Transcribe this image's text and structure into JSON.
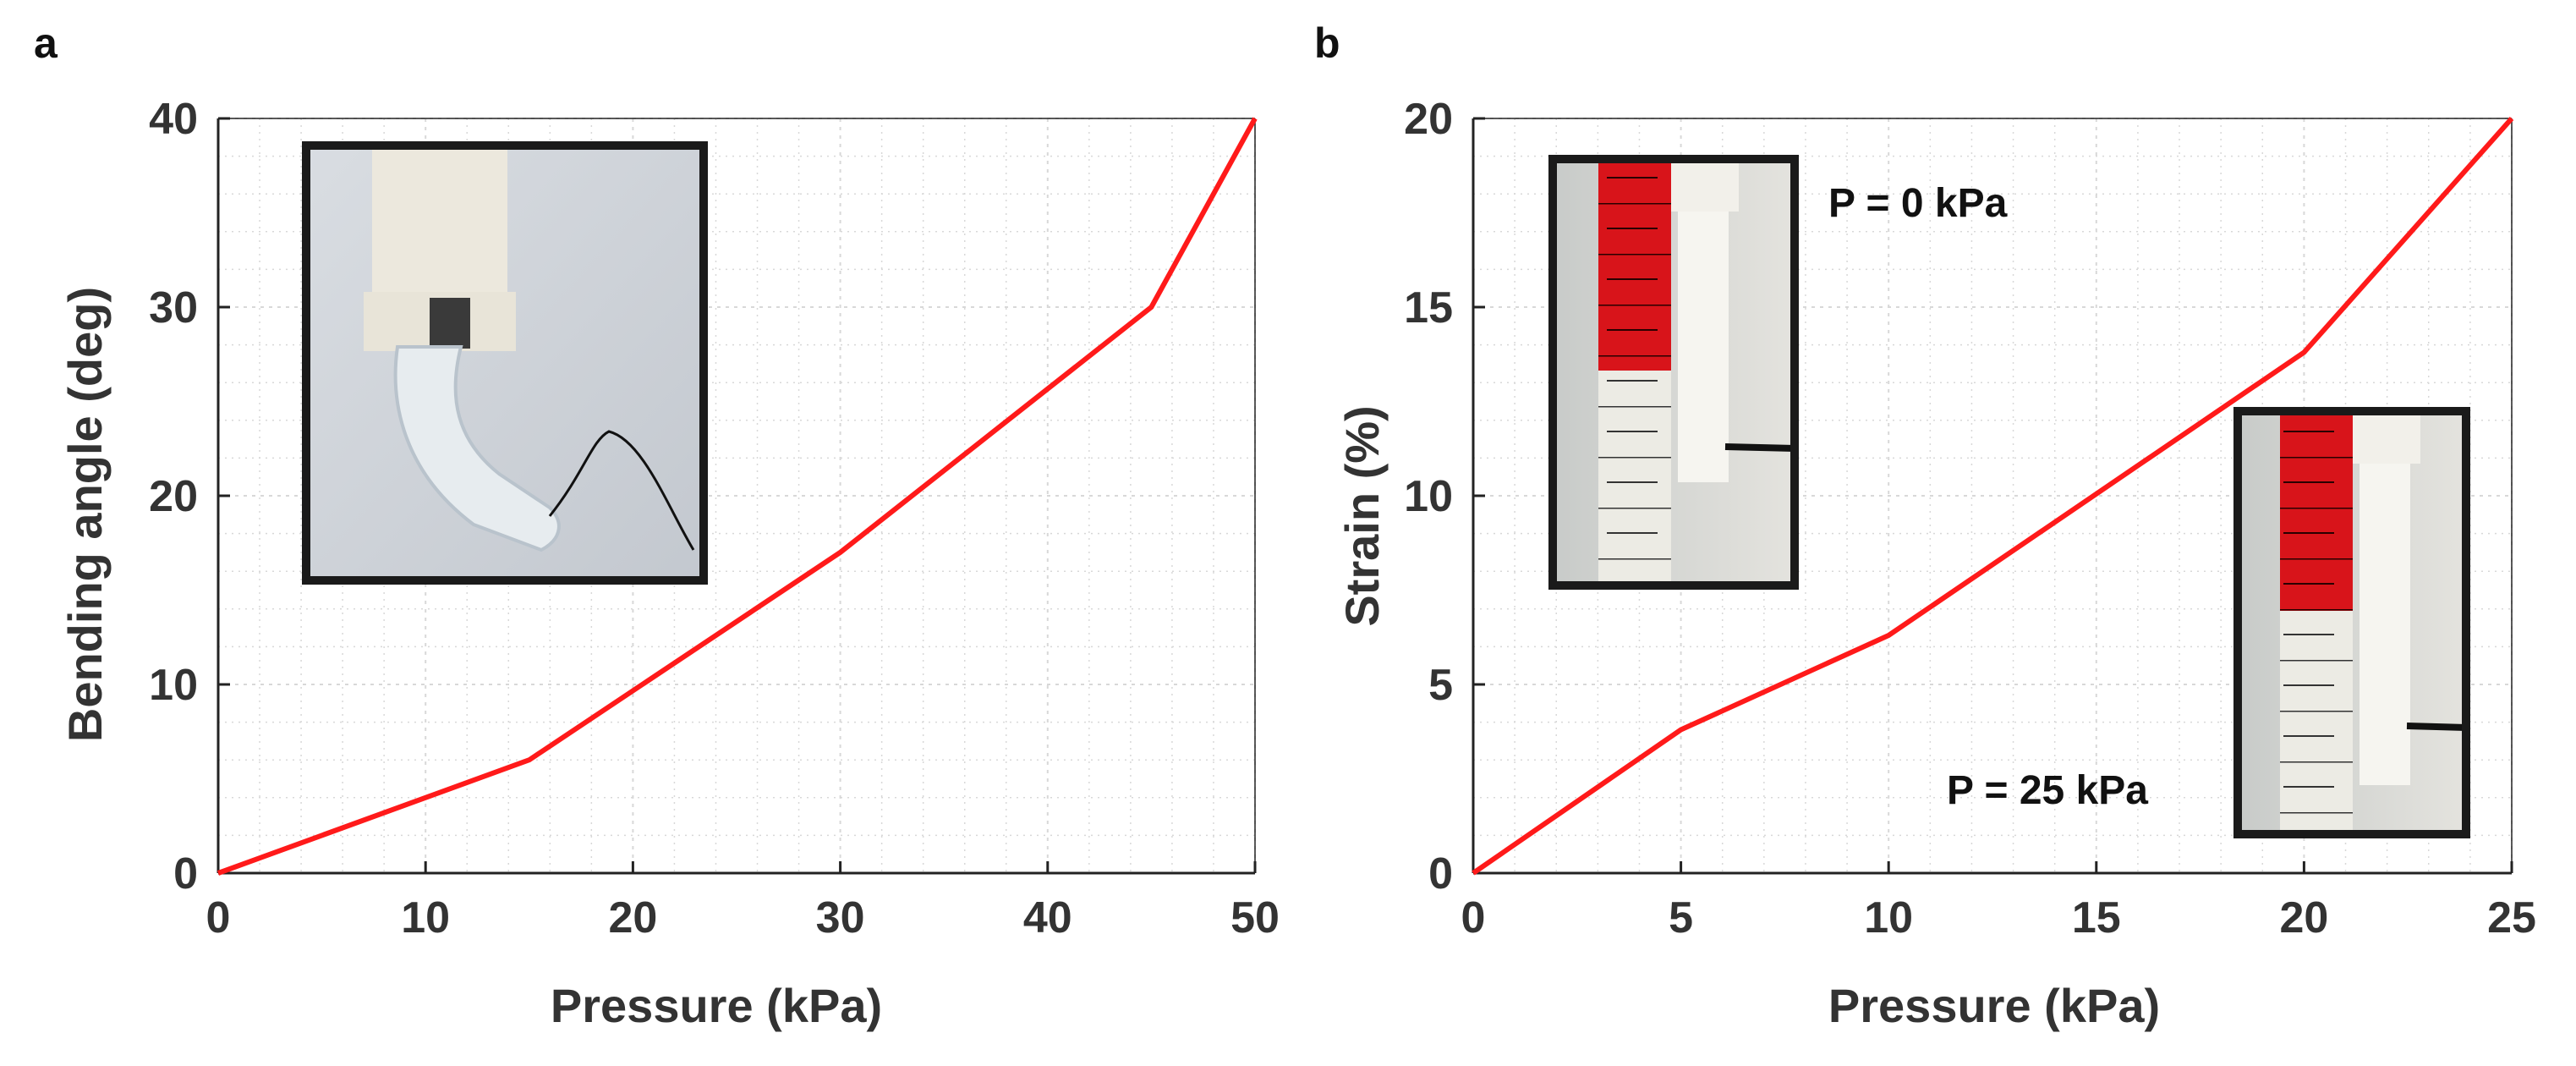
{
  "colors": {
    "line": "#ff1a1a",
    "axis": "#222222",
    "grid": "#d8d8d8",
    "photo_frame": "#1a1a1a"
  },
  "chart_data": [
    {
      "panel": "a",
      "type": "line",
      "xlabel": "Pressure (kPa)",
      "ylabel": "Bending angle (deg)",
      "xlim": [
        0,
        50
      ],
      "ylim": [
        0,
        40
      ],
      "xticks": [
        0,
        10,
        20,
        30,
        40,
        50
      ],
      "yticks": [
        0,
        10,
        20,
        30,
        40
      ],
      "grid": true,
      "series": [
        {
          "name": "bending",
          "x": [
            0,
            15,
            30,
            45,
            50
          ],
          "y": [
            0,
            6,
            17,
            30,
            40
          ]
        }
      ],
      "inset": "photo of bending soft actuator",
      "annotations": []
    },
    {
      "panel": "b",
      "type": "line",
      "xlabel": "Pressure (kPa)",
      "ylabel": "Strain (%)",
      "xlim": [
        0,
        25
      ],
      "ylim": [
        0,
        20
      ],
      "xticks": [
        0,
        5,
        10,
        15,
        20,
        25
      ],
      "yticks": [
        0,
        5,
        10,
        15,
        20
      ],
      "grid": true,
      "series": [
        {
          "name": "strain",
          "x": [
            0,
            5,
            10,
            20,
            25
          ],
          "y": [
            0,
            3.8,
            6.3,
            13.8,
            20
          ]
        }
      ],
      "annotations": [
        "P = 0 kPa",
        "P = 25 kPa"
      ]
    }
  ]
}
